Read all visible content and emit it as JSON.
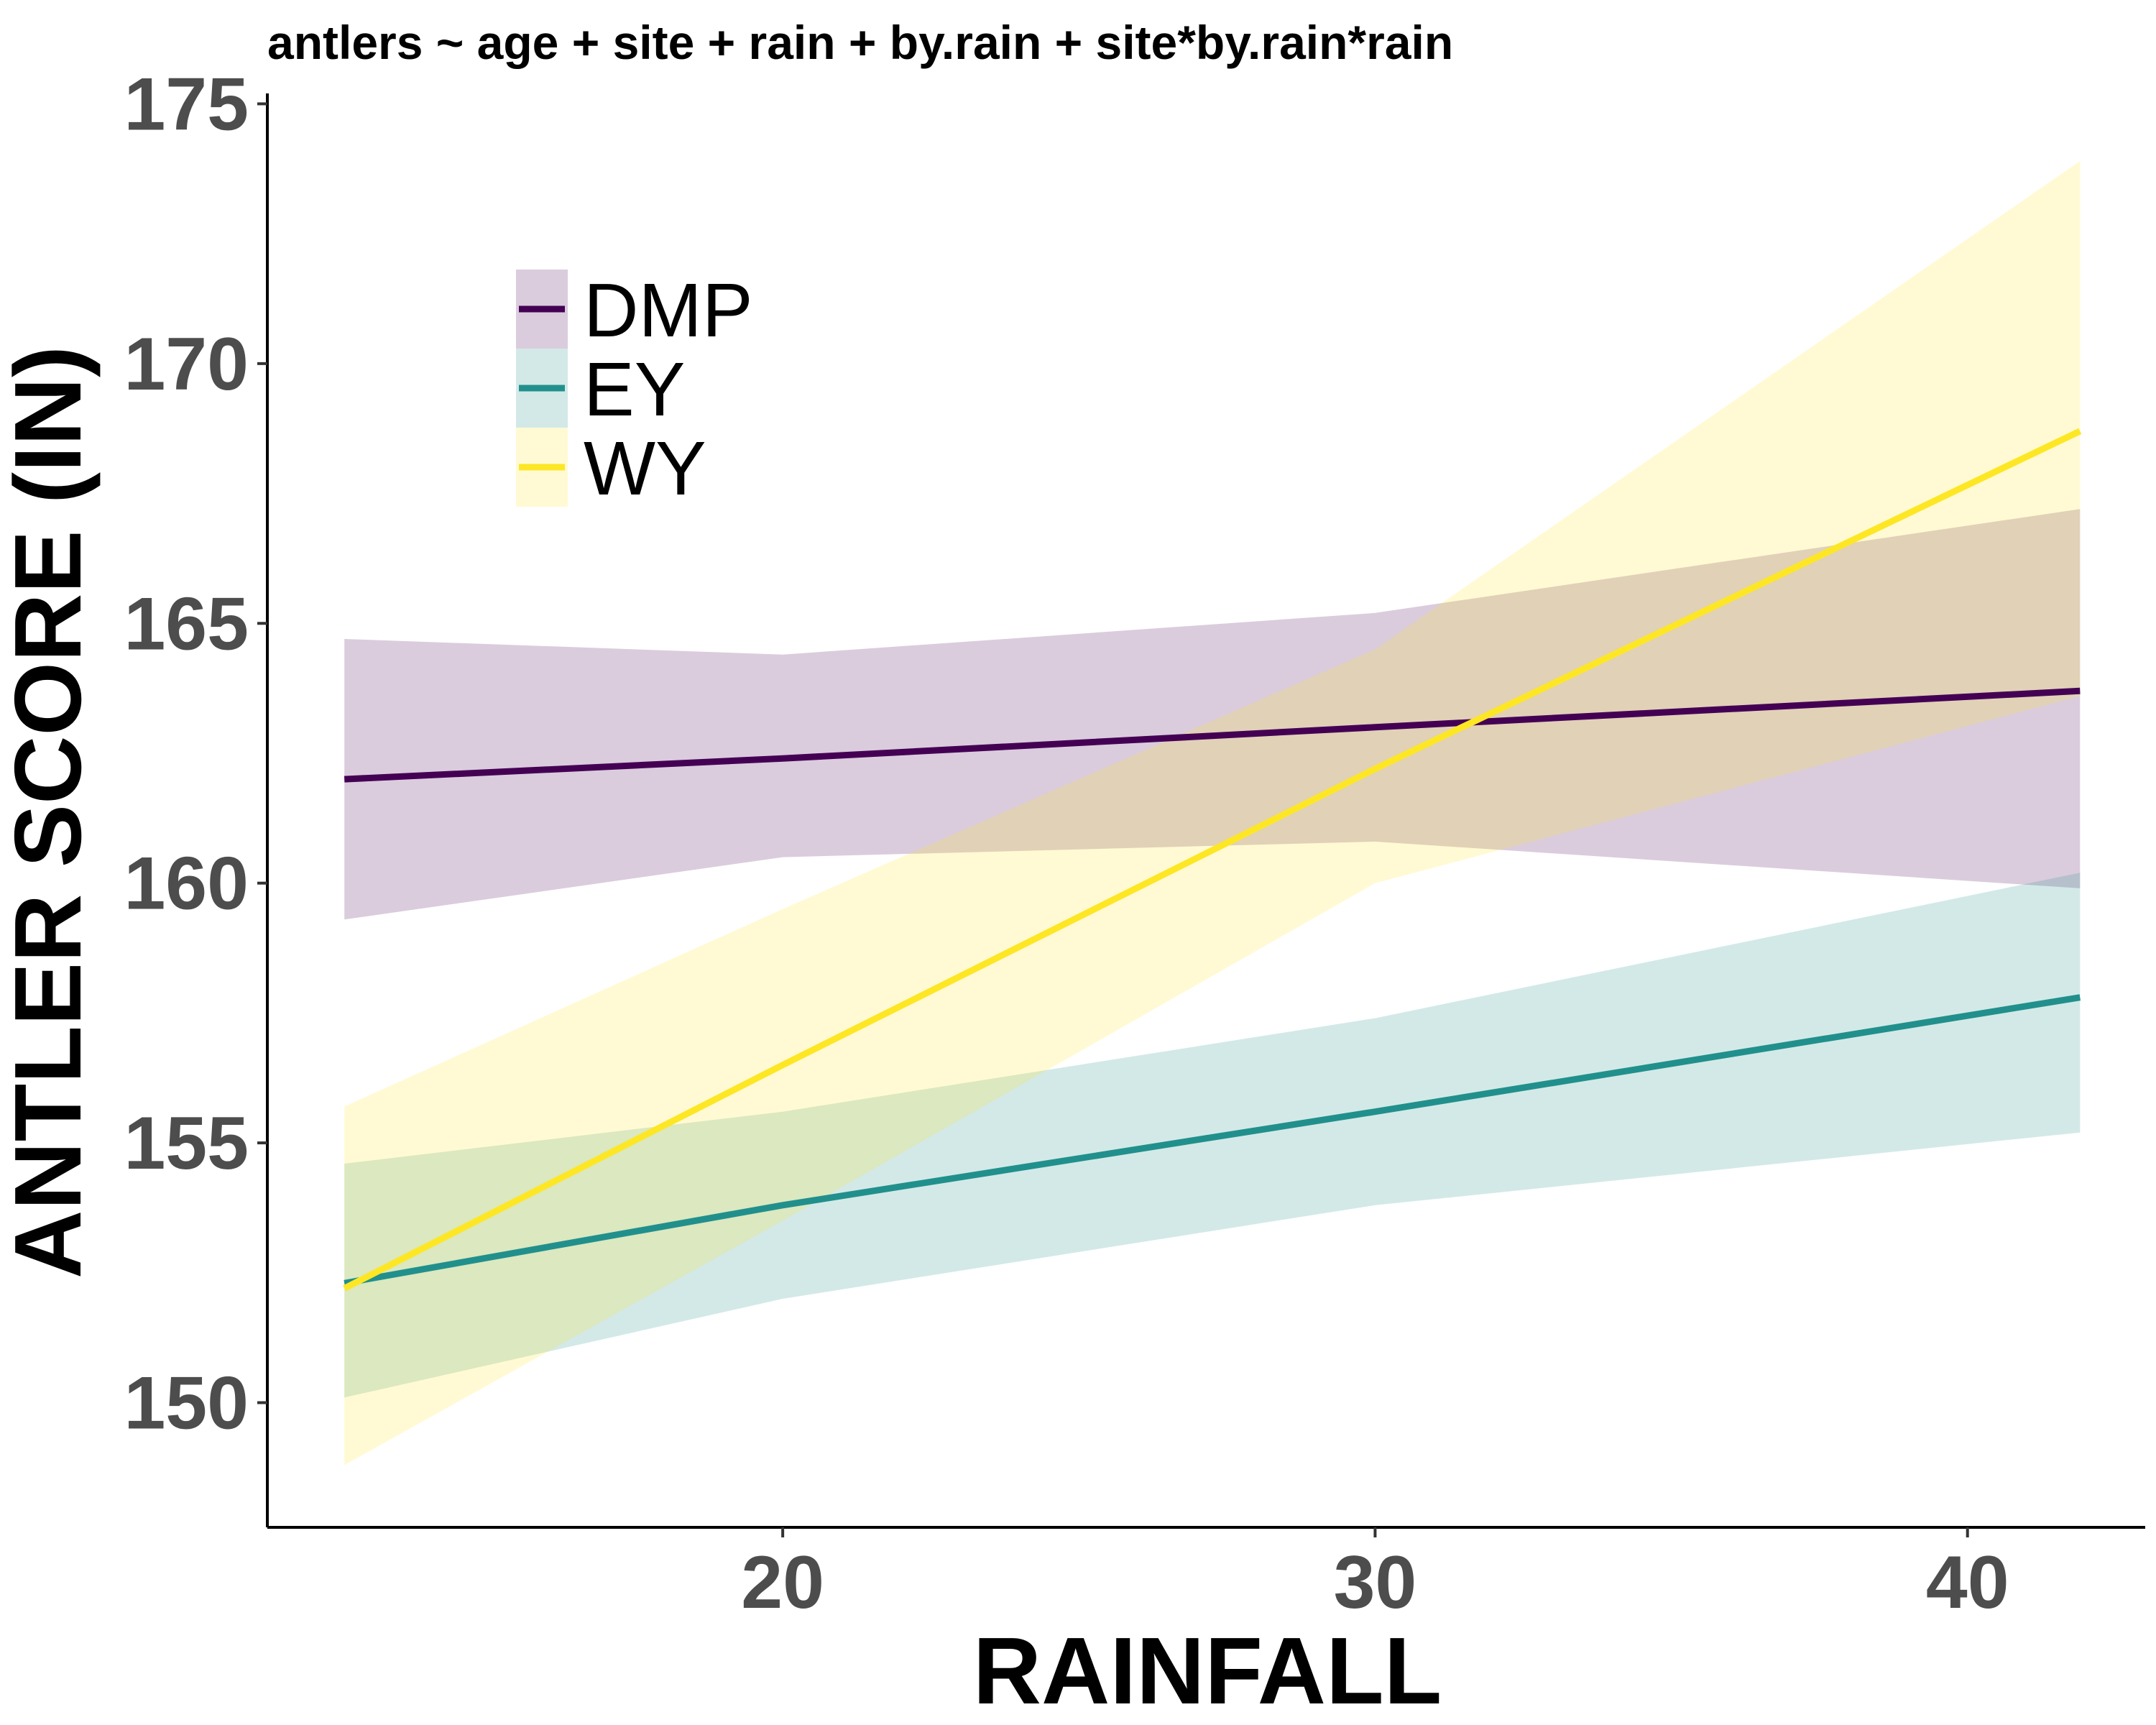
{
  "chart_data": {
    "type": "line",
    "title": "antlers ~ age + site + rain + by.rain + site*by.rain*rain",
    "xlabel": "RAINFALL",
    "ylabel": "ANTLER SCORE (IN)",
    "xlim": [
      11.3,
      43.0
    ],
    "ylim": [
      147.6,
      175.2
    ],
    "x_ticks": [
      20,
      30,
      40
    ],
    "y_ticks": [
      150,
      155,
      160,
      165,
      170,
      175
    ],
    "x_tick_labels": [
      "20",
      "30",
      "40"
    ],
    "y_tick_labels": [
      "150",
      "155",
      "160",
      "165",
      "170",
      "175"
    ],
    "grid": false,
    "legend_position": "top-left",
    "series": [
      {
        "name": "DMP",
        "color": "#440154",
        "x": [
          12.6,
          20,
          30,
          41.9
        ],
        "y": [
          162.0,
          162.4,
          163.0,
          163.7
        ],
        "lower": [
          159.3,
          160.5,
          160.8,
          159.9
        ],
        "upper": [
          164.7,
          164.4,
          165.2,
          167.2
        ]
      },
      {
        "name": "EY",
        "color": "#21908C",
        "x": [
          12.6,
          20,
          30,
          41.9
        ],
        "y": [
          152.3,
          153.8,
          155.6,
          157.8
        ],
        "lower": [
          150.1,
          152.0,
          153.8,
          155.2
        ],
        "upper": [
          154.6,
          155.6,
          157.4,
          160.2
        ]
      },
      {
        "name": "WY",
        "color": "#FDE725",
        "x": [
          12.6,
          20,
          30,
          41.9
        ],
        "y": [
          152.2,
          156.5,
          162.2,
          168.7
        ],
        "lower": [
          148.8,
          153.5,
          160.0,
          163.6
        ],
        "upper": [
          155.7,
          159.5,
          164.5,
          173.9
        ]
      }
    ]
  }
}
